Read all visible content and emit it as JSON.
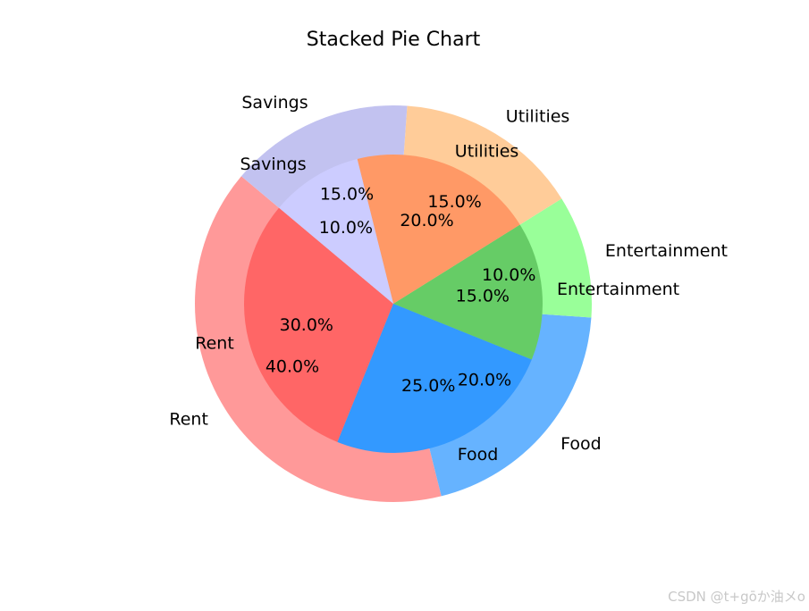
{
  "chart_data": {
    "type": "pie",
    "title": "Stacked Pie Chart",
    "categories": [
      "Rent",
      "Food",
      "Entertainment",
      "Utilities",
      "Savings"
    ],
    "series": [
      {
        "ring": "outer",
        "values": [
          40,
          20,
          10,
          15,
          15
        ],
        "colors": [
          "#ff9999",
          "#66b3ff",
          "#99ff99",
          "#ffcc99",
          "#c2c2f0"
        ]
      },
      {
        "ring": "inner",
        "values": [
          30,
          25,
          15,
          20,
          10
        ],
        "colors": [
          "#ff6666",
          "#3399ff",
          "#66cc66",
          "#ff9966",
          "#ccccff"
        ]
      }
    ],
    "autopct_format": "{:.1f}%",
    "start_angle_deg": 140
  },
  "watermark": "CSDN @t+gōか油メo"
}
